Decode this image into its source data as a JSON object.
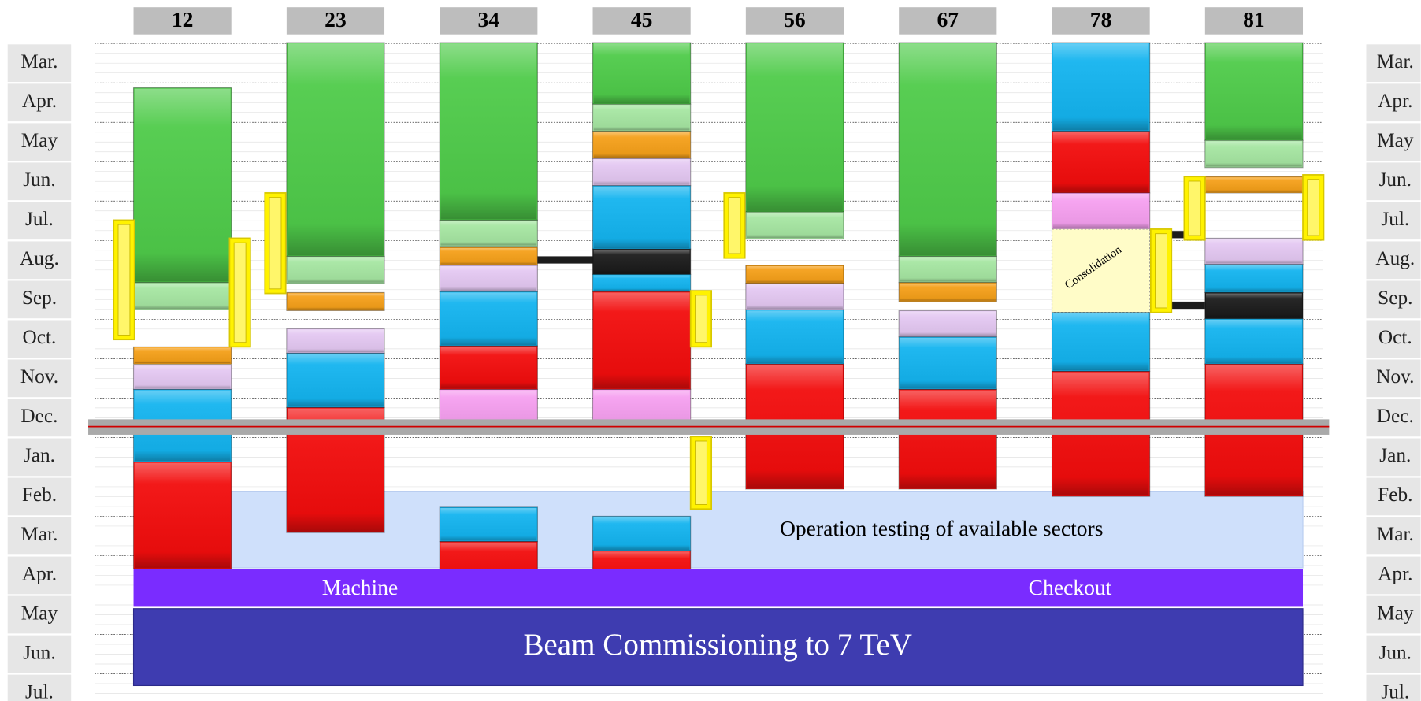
{
  "sectors": [
    "12",
    "23",
    "34",
    "45",
    "56",
    "67",
    "78",
    "81"
  ],
  "months": [
    "Mar.",
    "Apr.",
    "May",
    "Jun.",
    "Jul.",
    "Aug.",
    "Sep.",
    "Oct.",
    "Nov.",
    "Dec.",
    "Jan.",
    "Feb.",
    "Mar.",
    "Apr.",
    "May",
    "Jun.",
    "Jul."
  ],
  "labels": {
    "consolidation": "Consolidation",
    "operation": "Operation testing of available sectors",
    "machine": "Machine",
    "checkout": "Checkout",
    "beam": "Beam Commissioning to 7 TeV"
  }
}
